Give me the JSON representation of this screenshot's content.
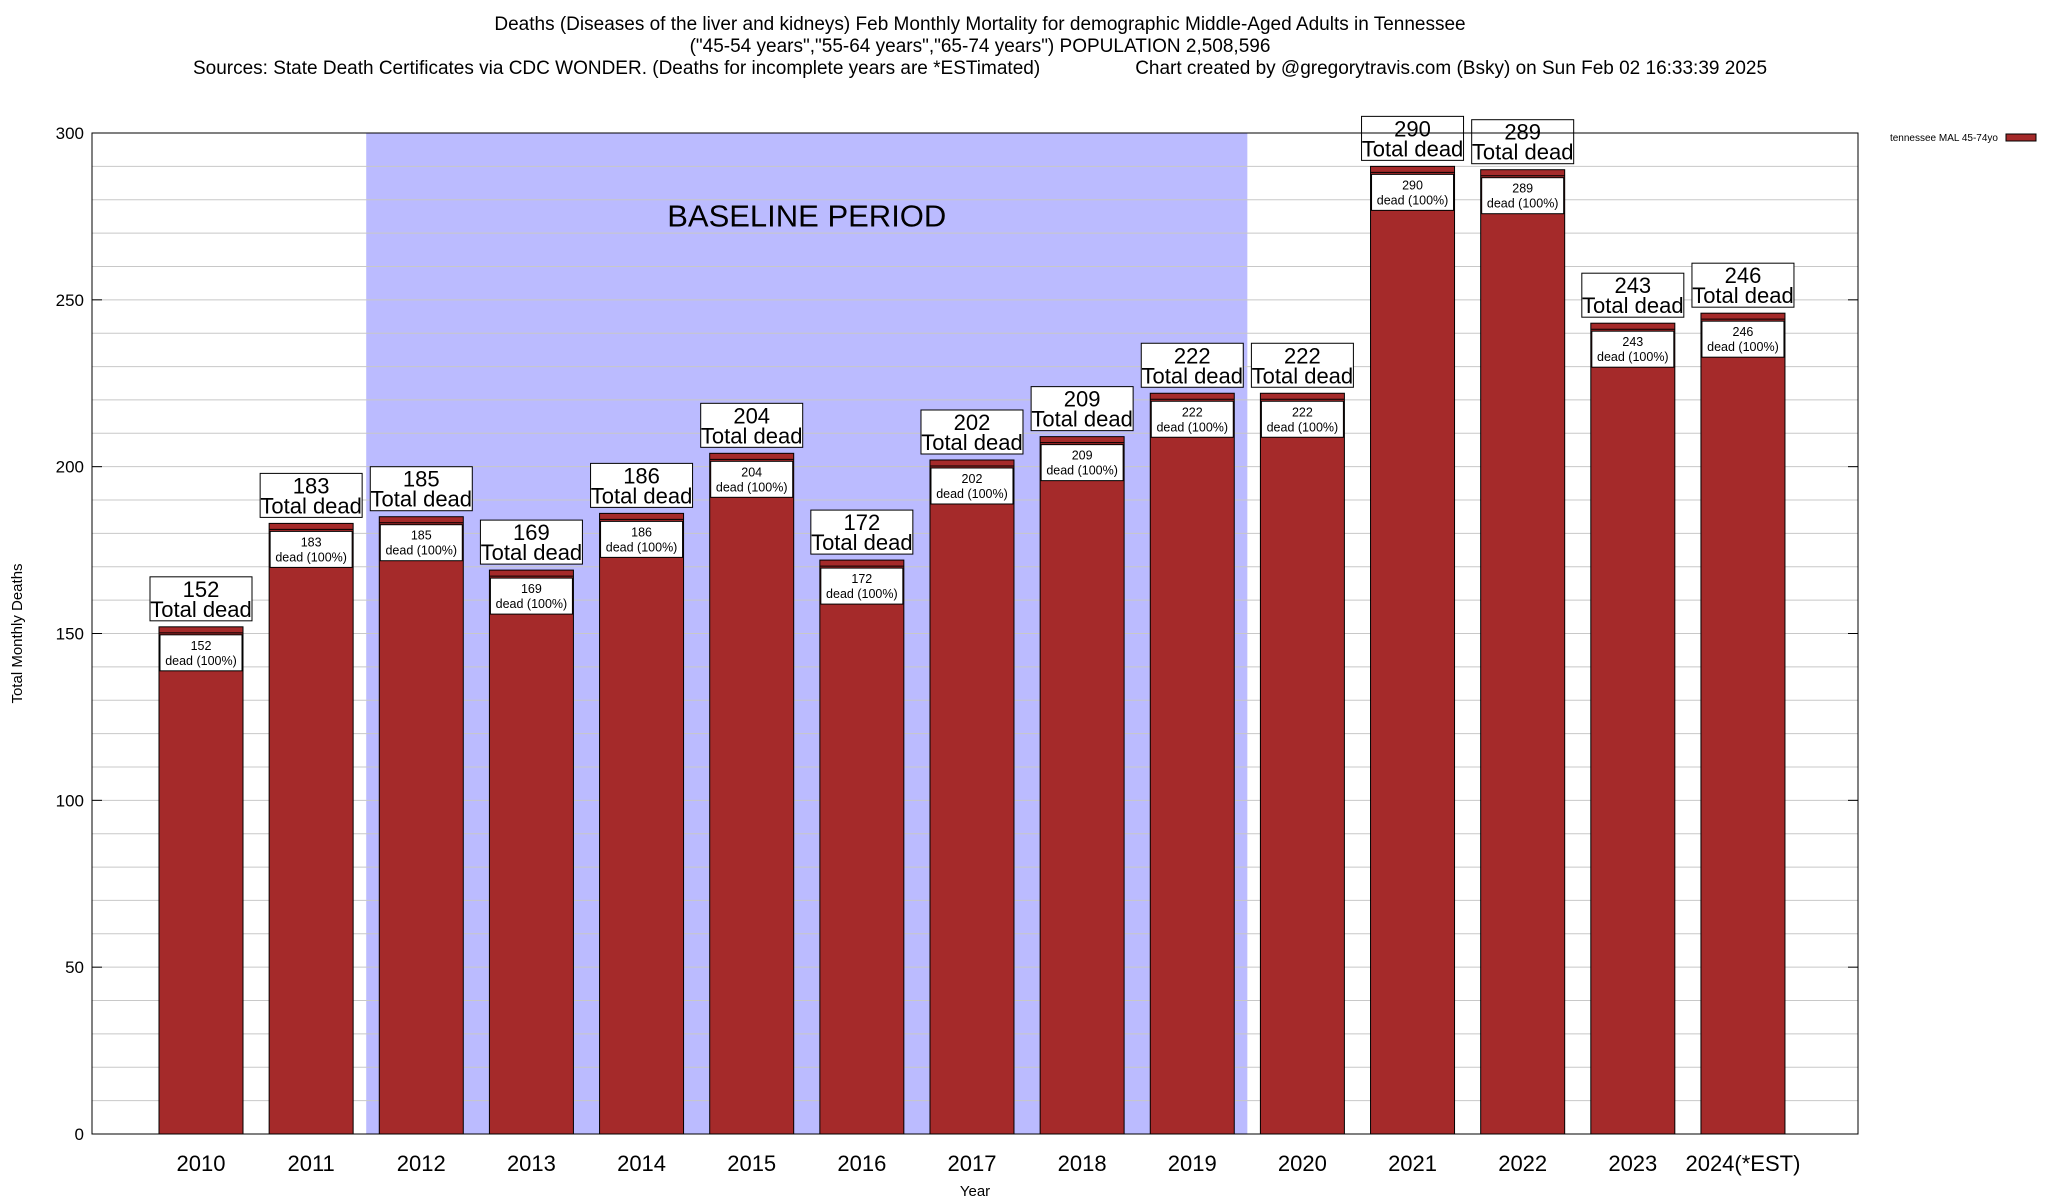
{
  "chart_data": {
    "type": "bar",
    "title_lines": [
      "Deaths (Diseases of the liver and kidneys) Feb Monthly Mortality for demographic Middle-Aged Adults in Tennessee",
      "(\"45-54 years\",\"55-64 years\",\"65-74 years\") POPULATION 2,508,596",
      "Sources: State Death Certificates via CDC WONDER. (Deaths for incomplete years are *ESTimated)",
      "Chart created by @gregorytravis.com (Bsky) on Sun Feb 02 16:33:39 2025"
    ],
    "categories": [
      "2010",
      "2011",
      "2012",
      "2013",
      "2014",
      "2015",
      "2016",
      "2017",
      "2018",
      "2019",
      "2020",
      "2021",
      "2022",
      "2023",
      "2024(*EST)"
    ],
    "series": [
      {
        "name": "tennessee MAL 45-74yo",
        "values": [
          152,
          183,
          185,
          169,
          186,
          204,
          172,
          202,
          209,
          222,
          222,
          290,
          289,
          243,
          246
        ]
      }
    ],
    "xlabel": "Year",
    "ylabel": "Total Monthly Deaths",
    "ylim": [
      0,
      300
    ],
    "yticks": [
      0,
      50,
      100,
      150,
      200,
      250,
      300
    ],
    "grid": true,
    "legend": "top-right",
    "bar_top_label": "Total dead",
    "bar_inner_label": "dead (100%)",
    "baseline": {
      "label": "BASELINE PERIOD",
      "from": "2012",
      "to": "2019"
    },
    "colors": {
      "bar": "#a52a2a",
      "bar_stroke": "#000000",
      "baseline_fill": "#bbbbff",
      "grid": "#c8c8c8"
    }
  }
}
